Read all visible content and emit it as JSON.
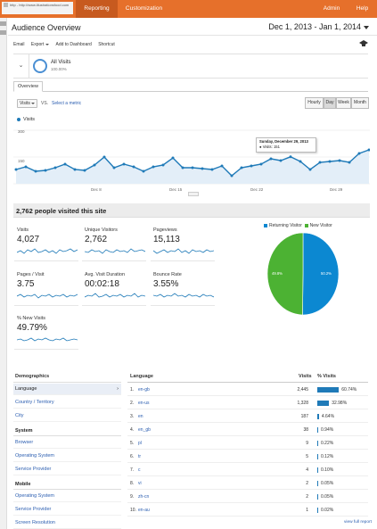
{
  "topbar": {
    "site_url": "http - http://www.illustrationsfood.com",
    "tabs": [
      "Reporting",
      "Customization"
    ],
    "admin": "Admin",
    "help": "Help"
  },
  "header": {
    "title": "Audience Overview",
    "date_range": "Dec 1, 2013 - Jan 1, 2014"
  },
  "actions": [
    "Email",
    "Export",
    "Add to Dashboard",
    "Shortcut"
  ],
  "segment": {
    "name": "All Visits",
    "pct": "100.00%"
  },
  "tab_overview": "Overview",
  "metric_select": "Visits",
  "vs": "VS.",
  "select_metric": "Select a metric",
  "granularity": [
    "Hourly",
    "Day",
    "Week",
    "Month"
  ],
  "legend_label": "Visits",
  "chart_data": {
    "type": "area",
    "series": [
      {
        "name": "Visits",
        "values": [
          80,
          95,
          70,
          75,
          90,
          110,
          80,
          75,
          105,
          150,
          90,
          110,
          95,
          70,
          95,
          105,
          145,
          90,
          90,
          85,
          80,
          100,
          45,
          90,
          100,
          110,
          140,
          130,
          151,
          125,
          80,
          120,
          125,
          130,
          120,
          170,
          190
        ]
      }
    ],
    "y_ticks": [
      "300",
      "150"
    ],
    "x_ticks": [
      "Dec 8",
      "Dec 15",
      "Dec 22",
      "Dec 29"
    ],
    "ylim": [
      0,
      300
    ]
  },
  "tooltip": {
    "date": "Sunday, December 29, 2013",
    "line": "● Visits: 151"
  },
  "section_title": "2,762 people visited this site",
  "tiles": [
    {
      "label": "Visits",
      "value": "4,027"
    },
    {
      "label": "Unique Visitors",
      "value": "2,762"
    },
    {
      "label": "Pageviews",
      "value": "15,113"
    },
    {
      "label": "Pages / Visit",
      "value": "3.75"
    },
    {
      "label": "Avg. Visit Duration",
      "value": "00:02:18"
    },
    {
      "label": "Bounce Rate",
      "value": "3.55%"
    },
    {
      "label": "% New Visits",
      "value": "49.79%"
    }
  ],
  "pie": {
    "legend": [
      {
        "name": "Returning Visitor",
        "color": "#0c88d1"
      },
      {
        "name": "New Visitor",
        "color": "#4cb233"
      }
    ],
    "values": [
      50.2,
      49.8
    ],
    "labels": [
      "50.2%",
      "49.8%"
    ]
  },
  "demographics": {
    "head": "Demographics",
    "items": [
      "Language",
      "Country / Territory",
      "City"
    ],
    "system_head": "System",
    "system": [
      "Browser",
      "Operating System",
      "Service Provider"
    ],
    "mobile_head": "Mobile",
    "mobile": [
      "Operating System",
      "Service Provider",
      "Screen Resolution"
    ]
  },
  "language_table": {
    "columns": [
      "Language",
      "Visits",
      "% Visits"
    ],
    "rows": [
      {
        "n": "1.",
        "lang": "en-gb",
        "visits": "2,445",
        "pct": "60.74%",
        "frac": 0.6074
      },
      {
        "n": "2.",
        "lang": "en-us",
        "visits": "1,328",
        "pct": "32.98%",
        "frac": 0.3298
      },
      {
        "n": "3.",
        "lang": "en",
        "visits": "187",
        "pct": "4.64%",
        "frac": 0.0464
      },
      {
        "n": "4.",
        "lang": "en_gb",
        "visits": "38",
        "pct": "0.94%",
        "frac": 0.0094
      },
      {
        "n": "5.",
        "lang": "pl",
        "visits": "9",
        "pct": "0.22%",
        "frac": 0.0022
      },
      {
        "n": "6.",
        "lang": "tr",
        "visits": "5",
        "pct": "0.12%",
        "frac": 0.0012
      },
      {
        "n": "7.",
        "lang": "c",
        "visits": "4",
        "pct": "0.10%",
        "frac": 0.001
      },
      {
        "n": "8.",
        "lang": "vi",
        "visits": "2",
        "pct": "0.05%",
        "frac": 0.0005
      },
      {
        "n": "9.",
        "lang": "zh-cn",
        "visits": "2",
        "pct": "0.05%",
        "frac": 0.0005
      },
      {
        "n": "10.",
        "lang": "en-au",
        "visits": "1",
        "pct": "0.02%",
        "frac": 0.0002
      }
    ],
    "full_report": "view full report"
  }
}
